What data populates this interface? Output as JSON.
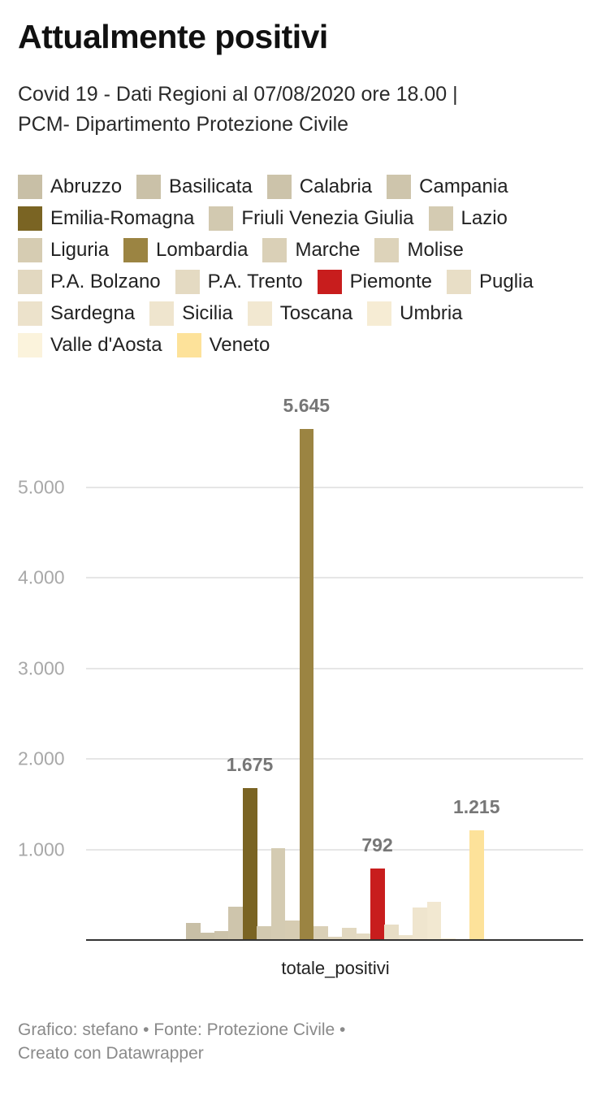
{
  "title": "Attualmente positivi",
  "subtitle_line1": "Covid 19 - Dati Regioni al 07/08/2020 ore 18.00 |",
  "subtitle_line2": "PCM- Dipartimento Protezione Civile",
  "footer_line1": "Grafico: stefano • Fonte: Protezione Civile •",
  "footer_line2": "Creato con Datawrapper",
  "chart_data": {
    "type": "bar",
    "title": "Attualmente positivi",
    "xlabel": "totale_positivi",
    "ylabel": "",
    "categories": [
      "totale_positivi"
    ],
    "ylim": [
      0,
      5700
    ],
    "yticks": [
      "1.000",
      "2.000",
      "3.000",
      "4.000",
      "5.000"
    ],
    "grid": true,
    "legend_position": "top",
    "series": [
      {
        "name": "Abruzzo",
        "values": [
          190
        ],
        "color": "#c8bfa6"
      },
      {
        "name": "Basilicata",
        "values": [
          80
        ],
        "color": "#cac1a8"
      },
      {
        "name": "Calabria",
        "values": [
          100
        ],
        "color": "#ccc3aa"
      },
      {
        "name": "Campania",
        "values": [
          370
        ],
        "color": "#cec5ac"
      },
      {
        "name": "Emilia-Romagna",
        "values": [
          1675
        ],
        "color": "#7a6423",
        "label": "1.675"
      },
      {
        "name": "Friuli Venezia Giulia",
        "values": [
          150
        ],
        "color": "#d2c9b0"
      },
      {
        "name": "Lazio",
        "values": [
          1015
        ],
        "color": "#d4cbb2"
      },
      {
        "name": "Liguria",
        "values": [
          215
        ],
        "color": "#d6ccb2"
      },
      {
        "name": "Lombardia",
        "values": [
          5645
        ],
        "color": "#9b8442",
        "label": "5.645"
      },
      {
        "name": "Marche",
        "values": [
          150
        ],
        "color": "#dad0b7"
      },
      {
        "name": "Molise",
        "values": [
          35
        ],
        "color": "#ddd3ba"
      },
      {
        "name": "P.A. Bolzano",
        "values": [
          135
        ],
        "color": "#e2d8c0"
      },
      {
        "name": "P.A. Trento",
        "values": [
          70
        ],
        "color": "#e4dac2"
      },
      {
        "name": "Piemonte",
        "values": [
          792
        ],
        "color": "#c81d1d",
        "label": "792"
      },
      {
        "name": "Puglia",
        "values": [
          170
        ],
        "color": "#e8dec6"
      },
      {
        "name": "Sardegna",
        "values": [
          55
        ],
        "color": "#ece2cb"
      },
      {
        "name": "Sicilia",
        "values": [
          360
        ],
        "color": "#efe5ce"
      },
      {
        "name": "Toscana",
        "values": [
          420
        ],
        "color": "#f2e8d1"
      },
      {
        "name": "Umbria",
        "values": [
          20
        ],
        "color": "#f6ecd4"
      },
      {
        "name": "Valle d'Aosta",
        "values": [
          5
        ],
        "color": "#fbf3dc"
      },
      {
        "name": "Veneto",
        "values": [
          1215
        ],
        "color": "#fde29a",
        "label": "1.215"
      }
    ]
  }
}
